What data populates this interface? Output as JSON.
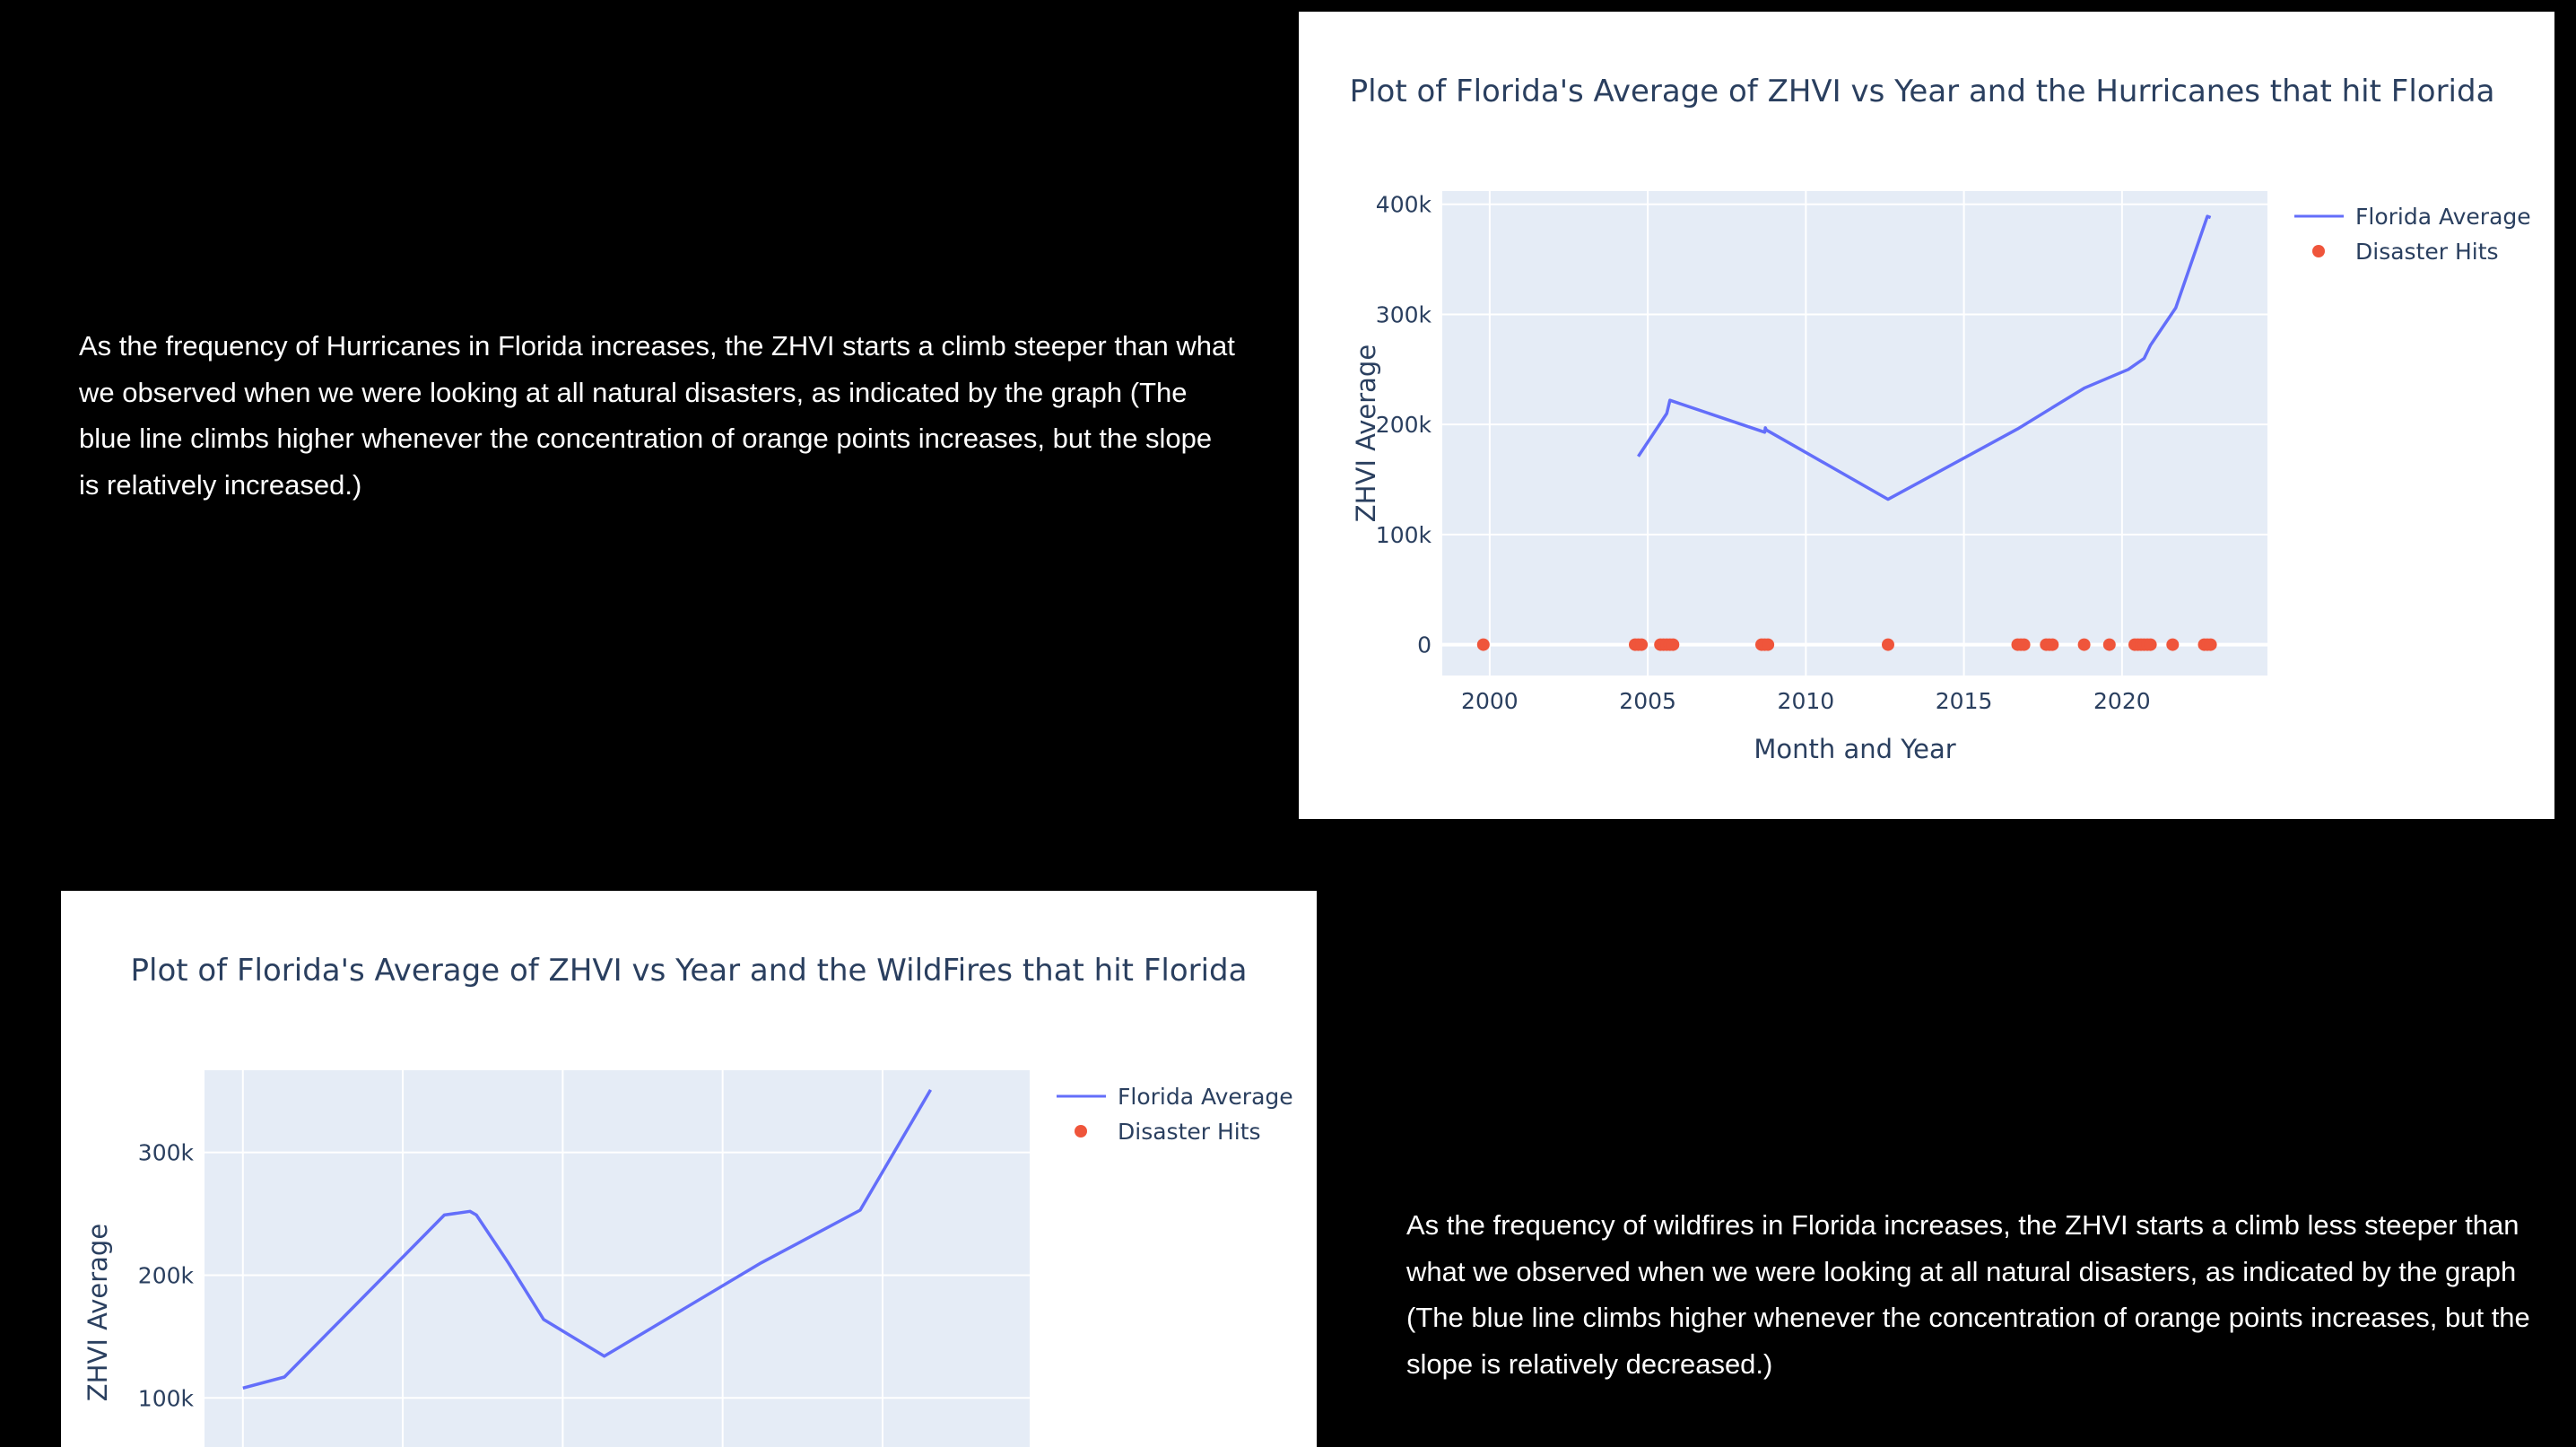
{
  "colors": {
    "page_background": "#000000",
    "plot_background": "#e5ecf6",
    "grid": "#ffffff",
    "line": "#636efa",
    "marker": "#ef553b",
    "text": "#2a3f5f"
  },
  "captions": {
    "hurricanes": "As the frequency of Hurricanes in Florida increases, the ZHVI starts a climb steeper than what we observed when we were looking at all natural disasters, as indicated by the graph (The blue line climbs higher whenever the concentration of orange points increases, but the slope is relatively increased.)",
    "wildfires": "As the frequency of wildfires in Florida increases, the ZHVI starts a climb less steeper than what we observed when we were looking at all natural disasters, as indicated by the graph (The blue line climbs higher whenever the concentration of orange points increases, but the slope is relatively decreased.)"
  },
  "chart_data": [
    {
      "type": "line",
      "title": "Plot of Florida's Average of ZHVI vs Year and the Hurricanes that hit Florida",
      "xlabel": "Month and Year",
      "ylabel": "ZHVI Average",
      "xlim": [
        1998.5,
        2024.6
      ],
      "ylim": [
        -28000,
        412000
      ],
      "x_ticks": [
        2000,
        2005,
        2010,
        2015,
        2020
      ],
      "x_tick_labels": [
        "2000",
        "2005",
        "2010",
        "2015",
        "2020"
      ],
      "y_ticks": [
        0,
        100000,
        200000,
        300000,
        400000
      ],
      "y_tick_labels": [
        "0",
        "100k",
        "200k",
        "300k",
        "400k"
      ],
      "legend_position": "top-right",
      "series": [
        {
          "name": "Florida Average",
          "type": "line",
          "x": [
            2004.7,
            2005.6,
            2005.7,
            2008.7,
            2008.72,
            2008.75,
            2012.6,
            2016.7,
            2018.8,
            2020.2,
            2020.7,
            2020.9,
            2021.7,
            2022.7,
            2022.8
          ],
          "y": [
            171000,
            210000,
            222000,
            193000,
            197000,
            195000,
            132000,
            196000,
            233000,
            250000,
            260000,
            272000,
            306000,
            389000,
            388000
          ]
        },
        {
          "name": "Disaster Hits",
          "type": "scatter",
          "x": [
            1999.8,
            2004.6,
            2004.7,
            2004.8,
            2005.4,
            2005.5,
            2005.6,
            2005.7,
            2005.8,
            2008.6,
            2008.7,
            2008.8,
            2012.6,
            2016.7,
            2016.8,
            2016.9,
            2017.6,
            2017.7,
            2017.8,
            2018.8,
            2019.6,
            2020.4,
            2020.5,
            2020.6,
            2020.7,
            2020.8,
            2020.9,
            2021.6,
            2022.6,
            2022.7,
            2022.8
          ],
          "y": [
            0,
            0,
            0,
            0,
            0,
            0,
            0,
            0,
            0,
            0,
            0,
            0,
            0,
            0,
            0,
            0,
            0,
            0,
            0,
            0,
            0,
            0,
            0,
            0,
            0,
            0,
            0,
            0,
            0,
            0,
            0
          ]
        }
      ]
    },
    {
      "type": "line",
      "title": "Plot of Florida's Average of ZHVI vs Year and the WildFires that hit Florida",
      "xlabel": "",
      "ylabel": "ZHVI Average",
      "xlim": [
        1998.8,
        2024.6
      ],
      "ylim": [
        60000,
        367000
      ],
      "x_ticks": [
        2000,
        2005,
        2010,
        2015,
        2020
      ],
      "x_tick_labels": [],
      "y_ticks": [
        100000,
        200000,
        300000
      ],
      "y_tick_labels": [
        "100k",
        "200k",
        "300k"
      ],
      "legend_position": "top-right",
      "series": [
        {
          "name": "Florida Average",
          "type": "line",
          "x": [
            2000.0,
            2001.3,
            2006.3,
            2007.1,
            2007.3,
            2008.3,
            2009.4,
            2011.3,
            2016.2,
            2019.3,
            2021.5
          ],
          "y": [
            108000,
            117000,
            249000,
            252000,
            249000,
            210000,
            164000,
            134000,
            210000,
            253000,
            351000
          ]
        },
        {
          "name": "Disaster Hits",
          "type": "scatter",
          "x": [],
          "y": []
        }
      ]
    }
  ]
}
